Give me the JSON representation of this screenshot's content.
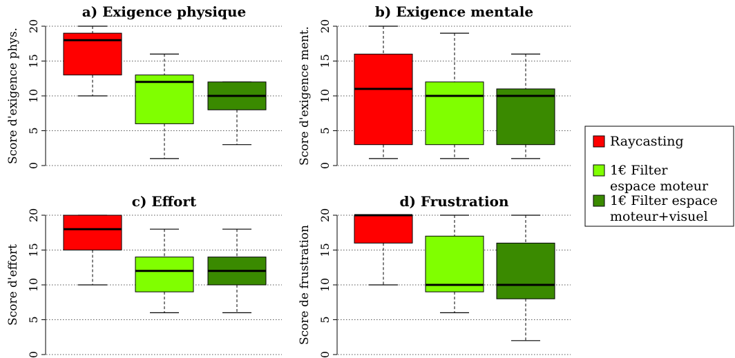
{
  "legend": [
    {
      "label_lines": [
        "Raycasting"
      ],
      "color": "#ff0000"
    },
    {
      "label_lines": [
        "1€ Filter",
        "espace moteur"
      ],
      "color": "#80ff00"
    },
    {
      "label_lines": [
        "1€ Filter espace",
        "moteur+visuel"
      ],
      "color": "#3a8a00"
    }
  ],
  "chart_data": [
    {
      "type": "box",
      "title": "a) Exigence physique",
      "ylabel": "Score d'exigence phys.",
      "ylim": [
        0,
        20
      ],
      "yticks": [
        "0",
        "5",
        "10",
        "15",
        "20"
      ],
      "grid": true,
      "series": [
        {
          "name": "Raycasting",
          "color": "#ff0000",
          "min": 10,
          "q1": 13,
          "median": 18,
          "q3": 19,
          "max": 20
        },
        {
          "name": "1€ Filter espace moteur",
          "color": "#80ff00",
          "min": 1,
          "q1": 6,
          "median": 12,
          "q3": 13,
          "max": 16
        },
        {
          "name": "1€ Filter espace moteur+visuel",
          "color": "#3a8a00",
          "min": 3,
          "q1": 8,
          "median": 10,
          "q3": 12,
          "max": 12
        }
      ]
    },
    {
      "type": "box",
      "title": "b) Exigence mentale",
      "ylabel": "Score d'exigence ment.",
      "ylim": [
        0,
        20
      ],
      "yticks": [
        "0",
        "5",
        "10",
        "15",
        "20"
      ],
      "grid": true,
      "series": [
        {
          "name": "Raycasting",
          "color": "#ff0000",
          "min": 1,
          "q1": 3,
          "median": 11,
          "q3": 16,
          "max": 20
        },
        {
          "name": "1€ Filter espace moteur",
          "color": "#80ff00",
          "min": 1,
          "q1": 3,
          "median": 10,
          "q3": 12,
          "max": 19
        },
        {
          "name": "1€ Filter espace moteur+visuel",
          "color": "#3a8a00",
          "min": 1,
          "q1": 3,
          "median": 10,
          "q3": 11,
          "max": 16
        }
      ]
    },
    {
      "type": "box",
      "title": "c) Effort",
      "ylabel": "Score d'effort",
      "ylim": [
        0,
        20
      ],
      "yticks": [
        "0",
        "5",
        "10",
        "15",
        "20"
      ],
      "grid": true,
      "series": [
        {
          "name": "Raycasting",
          "color": "#ff0000",
          "min": 10,
          "q1": 15,
          "median": 18,
          "q3": 20,
          "max": 20
        },
        {
          "name": "1€ Filter espace moteur",
          "color": "#80ff00",
          "min": 6,
          "q1": 9,
          "median": 12,
          "q3": 14,
          "max": 18
        },
        {
          "name": "1€ Filter espace moteur+visuel",
          "color": "#3a8a00",
          "min": 6,
          "q1": 10,
          "median": 12,
          "q3": 14,
          "max": 18
        }
      ]
    },
    {
      "type": "box",
      "title": "d) Frustration",
      "ylabel": "Score de frustration",
      "ylim": [
        0,
        20
      ],
      "yticks": [
        "0",
        "5",
        "10",
        "15",
        "20"
      ],
      "grid": true,
      "series": [
        {
          "name": "Raycasting",
          "color": "#ff0000",
          "min": 10,
          "q1": 16,
          "median": 20,
          "q3": 20,
          "max": 20
        },
        {
          "name": "1€ Filter espace moteur",
          "color": "#80ff00",
          "min": 6,
          "q1": 9,
          "median": 10,
          "q3": 17,
          "max": 20
        },
        {
          "name": "1€ Filter espace moteur+visuel",
          "color": "#3a8a00",
          "min": 2,
          "q1": 8,
          "median": 10,
          "q3": 16,
          "max": 20
        }
      ]
    }
  ]
}
